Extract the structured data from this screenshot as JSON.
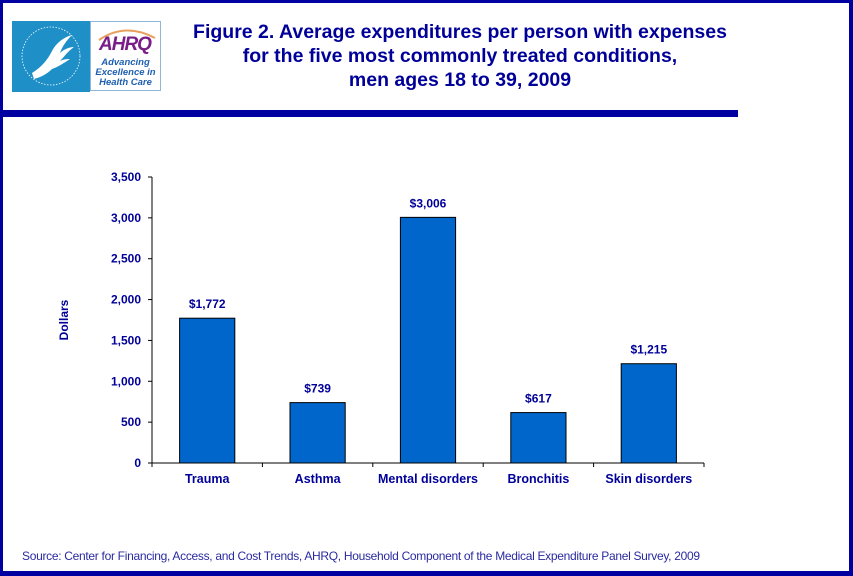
{
  "header": {
    "logo_hhs_icon": "hhs-eagle-logo",
    "logo_ahrq_word": "AHRQ",
    "logo_ahrq_tagline": [
      "Advancing",
      "Excellence in",
      "Health Care"
    ],
    "title_lines": [
      "Figure 2. Average expenditures per person with expenses",
      "for the five most commonly treated conditions,",
      "men ages 18 to 39, 2009"
    ]
  },
  "colors": {
    "frame": "#0000a0",
    "title": "#000099",
    "bar_fill": "#0066cc",
    "bar_stroke": "#000000",
    "text": "#000099"
  },
  "chart_data": {
    "type": "bar",
    "title": "Figure 2. Average expenditures per person with expenses for the five most commonly treated conditions, men ages 18 to 39, 2009",
    "categories": [
      "Trauma",
      "Asthma",
      "Mental disorders",
      "Bronchitis",
      "Skin disorders"
    ],
    "values": [
      1772,
      739,
      3006,
      617,
      1215
    ],
    "data_labels": [
      "$1,772",
      "$739",
      "$3,006",
      "$617",
      "$1,215"
    ],
    "xlabel": "",
    "ylabel": "Dollars",
    "ylim": [
      0,
      3500
    ],
    "yticks": [
      0,
      500,
      1000,
      1500,
      2000,
      2500,
      3000,
      3500
    ],
    "ytick_labels": [
      "0",
      "500",
      "1,000",
      "1,500",
      "2,000",
      "2,500",
      "3,000",
      "3,500"
    ],
    "grid": false,
    "legend": "none"
  },
  "footer": {
    "source": "Source: Center for Financing, Access, and Cost Trends, AHRQ, Household Component of the Medical Expenditure Panel Survey,  2009"
  }
}
